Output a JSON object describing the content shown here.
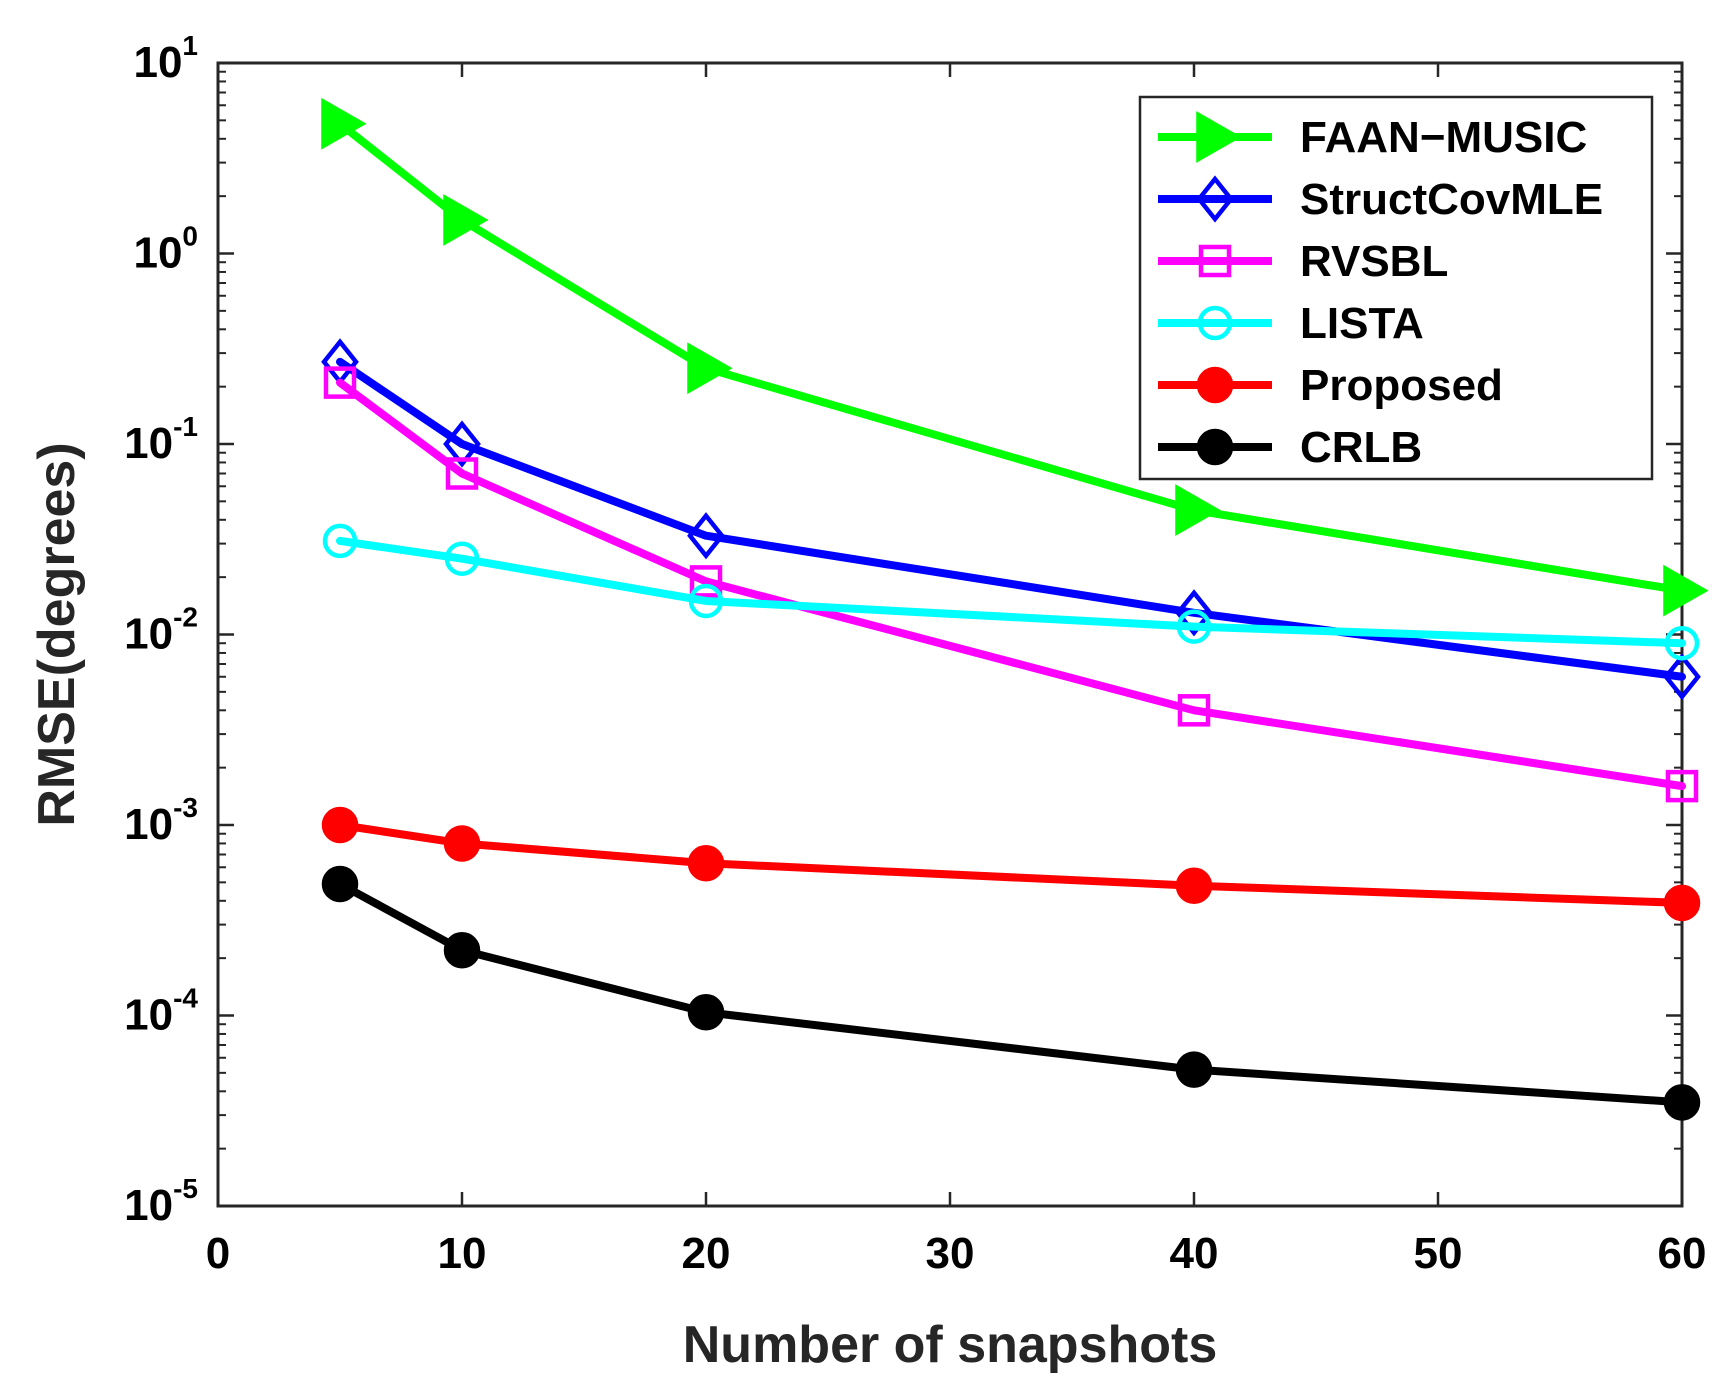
{
  "chart_data": {
    "type": "line",
    "title": "",
    "xlabel": "Number of snapshots",
    "ylabel": "RMSE(degrees)",
    "xlim": [
      0,
      60
    ],
    "ylim": [
      1e-05,
      10
    ],
    "yscale": "log",
    "grid": false,
    "legend_position": "top-right",
    "x_ticks": [
      0,
      10,
      20,
      30,
      40,
      50,
      60
    ],
    "x_tick_labels": [
      "0",
      "10",
      "20",
      "30",
      "40",
      "50",
      "60"
    ],
    "y_ticks": [
      1e-05,
      0.0001,
      0.001,
      0.01,
      0.1,
      1,
      10
    ],
    "y_tick_labels": [
      {
        "base": "10",
        "exp": "-5"
      },
      {
        "base": "10",
        "exp": "-4"
      },
      {
        "base": "10",
        "exp": "-3"
      },
      {
        "base": "10",
        "exp": "-2"
      },
      {
        "base": "10",
        "exp": "-1"
      },
      {
        "base": "10",
        "exp": "0"
      },
      {
        "base": "10",
        "exp": "1"
      }
    ],
    "x": [
      5,
      10,
      20,
      40,
      60
    ],
    "series": [
      {
        "name": "FAAN−MUSIC",
        "color": "#00ff00",
        "marker": "triangle-right",
        "values": [
          4.8,
          1.5,
          0.25,
          0.045,
          0.017
        ]
      },
      {
        "name": "StructCovMLE",
        "color": "#0000ff",
        "marker": "diamond",
        "values": [
          0.27,
          0.1,
          0.033,
          0.013,
          0.006
        ]
      },
      {
        "name": "RVSBL",
        "color": "#ff00ff",
        "marker": "square",
        "values": [
          0.21,
          0.07,
          0.019,
          0.004,
          0.0016
        ]
      },
      {
        "name": "LISTA",
        "color": "#00ffff",
        "marker": "circle-open",
        "values": [
          0.031,
          0.025,
          0.015,
          0.011,
          0.009
        ]
      },
      {
        "name": "Proposed",
        "color": "#ff0000",
        "marker": "circle",
        "values": [
          0.001,
          0.0008,
          0.00063,
          0.00048,
          0.00039
        ]
      },
      {
        "name": "CRLB",
        "color": "#000000",
        "marker": "circle",
        "values": [
          0.00049,
          0.00022,
          0.000104,
          5.2e-05,
          3.5e-05
        ]
      }
    ]
  }
}
